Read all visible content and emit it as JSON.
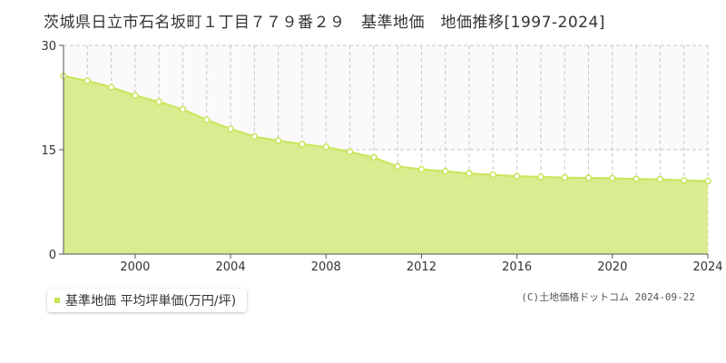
{
  "chart_data": {
    "type": "area",
    "title": "茨城県日立市石名坂町１丁目７７９番２９　基準地価　地価推移[1997-2024]",
    "xlim": [
      1997,
      2024
    ],
    "ylim": [
      0,
      30
    ],
    "x_ticks": [
      2000,
      2004,
      2008,
      2012,
      2016,
      2020,
      2024
    ],
    "y_ticks": [
      0,
      15,
      30
    ],
    "grid": true,
    "legend_position": "bottom-left",
    "series": [
      {
        "name": "基準地価 平均坪単価(万円/坪)",
        "color": "#c8e65a",
        "fill": "#d9ec8f",
        "points": [
          {
            "x": 1997,
            "y": 25.6
          },
          {
            "x": 1998,
            "y": 24.9
          },
          {
            "x": 1999,
            "y": 24.0
          },
          {
            "x": 2000,
            "y": 22.8
          },
          {
            "x": 2001,
            "y": 21.9
          },
          {
            "x": 2002,
            "y": 20.8
          },
          {
            "x": 2003,
            "y": 19.3
          },
          {
            "x": 2004,
            "y": 18.0
          },
          {
            "x": 2005,
            "y": 16.9
          },
          {
            "x": 2006,
            "y": 16.3
          },
          {
            "x": 2007,
            "y": 15.8
          },
          {
            "x": 2008,
            "y": 15.4
          },
          {
            "x": 2009,
            "y": 14.7
          },
          {
            "x": 2010,
            "y": 13.9
          },
          {
            "x": 2011,
            "y": 12.6
          },
          {
            "x": 2012,
            "y": 12.2
          },
          {
            "x": 2013,
            "y": 11.9
          },
          {
            "x": 2014,
            "y": 11.6
          },
          {
            "x": 2015,
            "y": 11.4
          },
          {
            "x": 2016,
            "y": 11.2
          },
          {
            "x": 2017,
            "y": 11.1
          },
          {
            "x": 2018,
            "y": 11.0
          },
          {
            "x": 2019,
            "y": 10.95
          },
          {
            "x": 2020,
            "y": 10.9
          },
          {
            "x": 2021,
            "y": 10.8
          },
          {
            "x": 2022,
            "y": 10.75
          },
          {
            "x": 2023,
            "y": 10.6
          },
          {
            "x": 2024,
            "y": 10.5
          }
        ]
      }
    ]
  },
  "legend": {
    "label": "基準地価 平均坪単価(万円/坪)",
    "marker_color": "#c8e65a"
  },
  "copyright": "(C)土地価格ドットコム 2024-09-22"
}
